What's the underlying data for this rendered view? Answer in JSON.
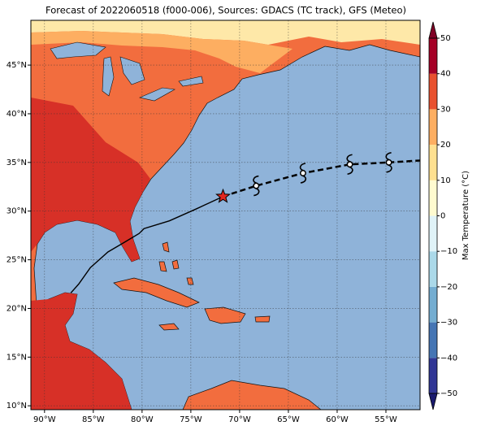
{
  "chart_data": {
    "type": "map",
    "title": "Forecast of 2022060518 (f000-006), Sources: GDACS (TC track), GFS (Meteo)",
    "xlim": [
      -91.4,
      -51.5
    ],
    "ylim": [
      9.6,
      49.6
    ],
    "grid": true,
    "xticks": [
      {
        "value": -90,
        "label": "90°W"
      },
      {
        "value": -85,
        "label": "85°W"
      },
      {
        "value": -80,
        "label": "80°W"
      },
      {
        "value": -75,
        "label": "75°W"
      },
      {
        "value": -70,
        "label": "70°W"
      },
      {
        "value": -65,
        "label": "65°W"
      },
      {
        "value": -60,
        "label": "60°W"
      },
      {
        "value": -55,
        "label": "55°W"
      }
    ],
    "yticks": [
      {
        "value": 10,
        "label": "10°N"
      },
      {
        "value": 15,
        "label": "15°N"
      },
      {
        "value": 20,
        "label": "20°N"
      },
      {
        "value": 25,
        "label": "25°N"
      },
      {
        "value": 30,
        "label": "30°N"
      },
      {
        "value": 35,
        "label": "35°N"
      },
      {
        "value": 40,
        "label": "40°N"
      },
      {
        "value": 45,
        "label": "45°N"
      }
    ],
    "past_track": {
      "lon": [
        -87.3,
        -86.5,
        -85.3,
        -83.5,
        -81.8,
        -80.3,
        -79.8,
        -77.2,
        -74.5,
        -71.7
      ],
      "lat": [
        21.6,
        22.5,
        24.2,
        25.8,
        26.8,
        27.7,
        28.2,
        29.0,
        30.2,
        31.5
      ]
    },
    "current_position": {
      "lon": -71.7,
      "lat": 31.5,
      "color": "#e3261f"
    },
    "forecast_track": {
      "lon": [
        -71.7,
        -68.3,
        -63.5,
        -58.7,
        -54.7,
        -51.5
      ],
      "lat": [
        31.5,
        32.6,
        33.9,
        34.8,
        35.0,
        35.2
      ]
    },
    "colorbar": {
      "label": "Max Temperature (°C)",
      "lim": [
        -50,
        50
      ],
      "ticks": [
        {
          "value": -50,
          "label": "−50"
        },
        {
          "value": -40,
          "label": "−40"
        },
        {
          "value": -30,
          "label": "−30"
        },
        {
          "value": -20,
          "label": "−20"
        },
        {
          "value": -10,
          "label": "−10"
        },
        0,
        10,
        20,
        30,
        40,
        50
      ],
      "colors": [
        "#313695",
        "#4575b4",
        "#74add1",
        "#abd9e9",
        "#e0f3f8",
        "#fffbd0",
        "#fee090",
        "#fdae61",
        "#e8512f",
        "#a50026"
      ],
      "under_color": "#1a1a6e",
      "over_color": "#800026"
    }
  }
}
